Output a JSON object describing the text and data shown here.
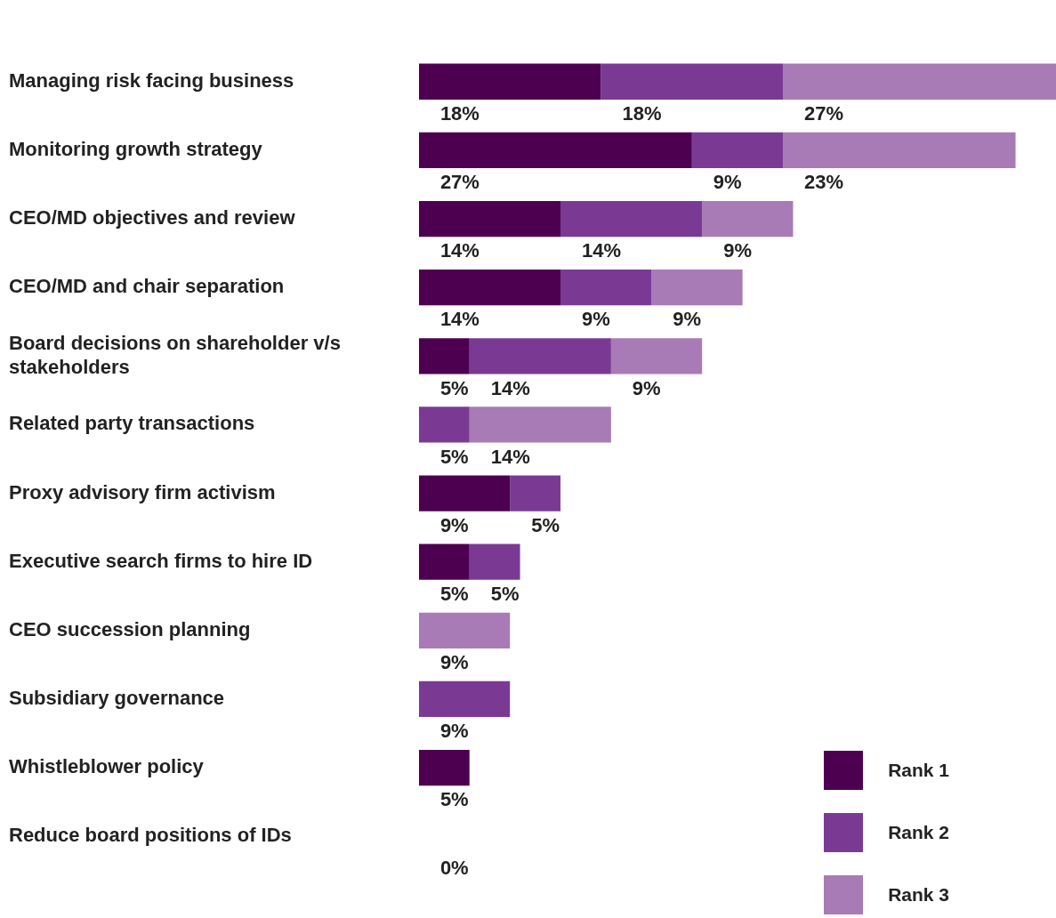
{
  "chart_data": {
    "type": "bar",
    "orientation": "horizontal",
    "stacked": true,
    "categories": [
      "Managing risk facing business",
      "Monitoring growth strategy",
      "CEO/MD objectives and review",
      "CEO/MD and chair separation",
      "Board decisions on shareholder v/s stakeholders",
      "Related party transactions",
      "Proxy advisory firm activism",
      "Executive search firms to hire ID",
      "CEO succession planning",
      "Subsidiary governance",
      "Whistleblower policy",
      "Reduce board positions of IDs"
    ],
    "series": [
      {
        "name": "Rank 1",
        "color": "#4d0050",
        "values": [
          18,
          27,
          14,
          14,
          5,
          0,
          9,
          5,
          0,
          0,
          5,
          0
        ],
        "value_labels": [
          "18%",
          "27%",
          "14%",
          "14%",
          "5%",
          null,
          "9%",
          "5%",
          null,
          null,
          "5%",
          null
        ]
      },
      {
        "name": "Rank 2",
        "color": "#7a3a94",
        "values": [
          18,
          9,
          14,
          9,
          14,
          5,
          5,
          5,
          0,
          9,
          0,
          0
        ],
        "value_labels": [
          "18%",
          "9%",
          "14%",
          "9%",
          "14%",
          "5%",
          "5%",
          "5%",
          null,
          "9%",
          null,
          null
        ]
      },
      {
        "name": "Rank 3",
        "color": "#a87ab6",
        "values": [
          27,
          23,
          9,
          9,
          9,
          14,
          0,
          0,
          9,
          0,
          0,
          0
        ],
        "value_labels": [
          "27%",
          "23%",
          "9%",
          "9%",
          "9%",
          "14%",
          null,
          null,
          "9%",
          null,
          null,
          null
        ]
      }
    ],
    "annotations": [
      {
        "text": "0%",
        "x": 0,
        "y": "Reduce board positions of IDs"
      }
    ],
    "xlim": [
      0,
      63
    ],
    "tick_labels": "y",
    "grid": false,
    "legend": "bottom right"
  }
}
